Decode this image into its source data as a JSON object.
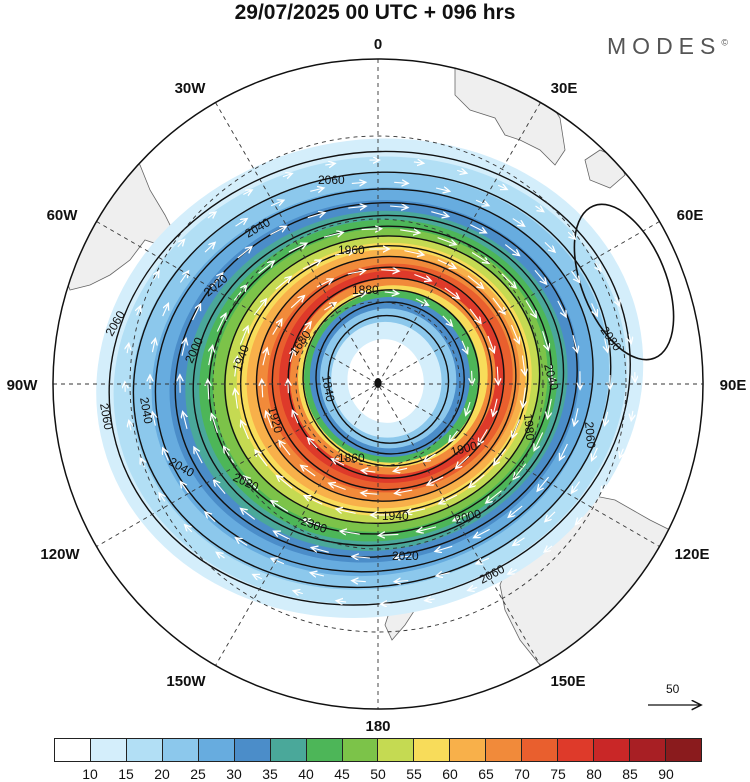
{
  "title": "29/07/2025  00 UTC  + 096 hrs",
  "brand": "MODES",
  "brand_mark": "©",
  "longitude_labels": {
    "top": "0",
    "top_right": "30E",
    "right_upper": "60E",
    "right": "90E",
    "right_lower": "120E",
    "bottom_right": "150E",
    "bottom": "180",
    "bottom_left": "150W",
    "left_lower": "120W",
    "left": "90W",
    "left_upper": "60W",
    "top_left": "30W"
  },
  "contour_labels": [
    {
      "text": "2060"
    },
    {
      "text": "2040"
    },
    {
      "text": "1960"
    },
    {
      "text": "2020"
    },
    {
      "text": "1880"
    },
    {
      "text": "1680"
    },
    {
      "text": "2000"
    },
    {
      "text": "1940"
    },
    {
      "text": "2060"
    },
    {
      "text": "2040"
    },
    {
      "text": "2080"
    },
    {
      "text": "2060"
    },
    {
      "text": "1840"
    },
    {
      "text": "1920"
    },
    {
      "text": "2040"
    },
    {
      "text": "1980"
    },
    {
      "text": "1860"
    },
    {
      "text": "1900"
    },
    {
      "text": "2060"
    },
    {
      "text": "2040"
    },
    {
      "text": "2020"
    },
    {
      "text": "2300"
    },
    {
      "text": "1940"
    },
    {
      "text": "2000"
    },
    {
      "text": "2020"
    },
    {
      "text": "2060"
    }
  ],
  "reference_vector": {
    "value": "50"
  },
  "colorbar": {
    "ticks": [
      "10",
      "15",
      "20",
      "25",
      "30",
      "35",
      "40",
      "45",
      "50",
      "55",
      "60",
      "65",
      "70",
      "75",
      "80",
      "85",
      "90"
    ],
    "colors": [
      "#ffffff",
      "#d4eefb",
      "#b2dff5",
      "#8cc8ec",
      "#67acdf",
      "#4b8dc9",
      "#4aa89a",
      "#4db658",
      "#7cc349",
      "#c5da52",
      "#f8dc5a",
      "#f8b04a",
      "#f18a3a",
      "#e95f2e",
      "#de3a2a",
      "#c92727",
      "#a81f24",
      "#8a1b1d"
    ]
  },
  "icons": [
    "polar-grid-icon",
    "reference-arrow-icon"
  ]
}
